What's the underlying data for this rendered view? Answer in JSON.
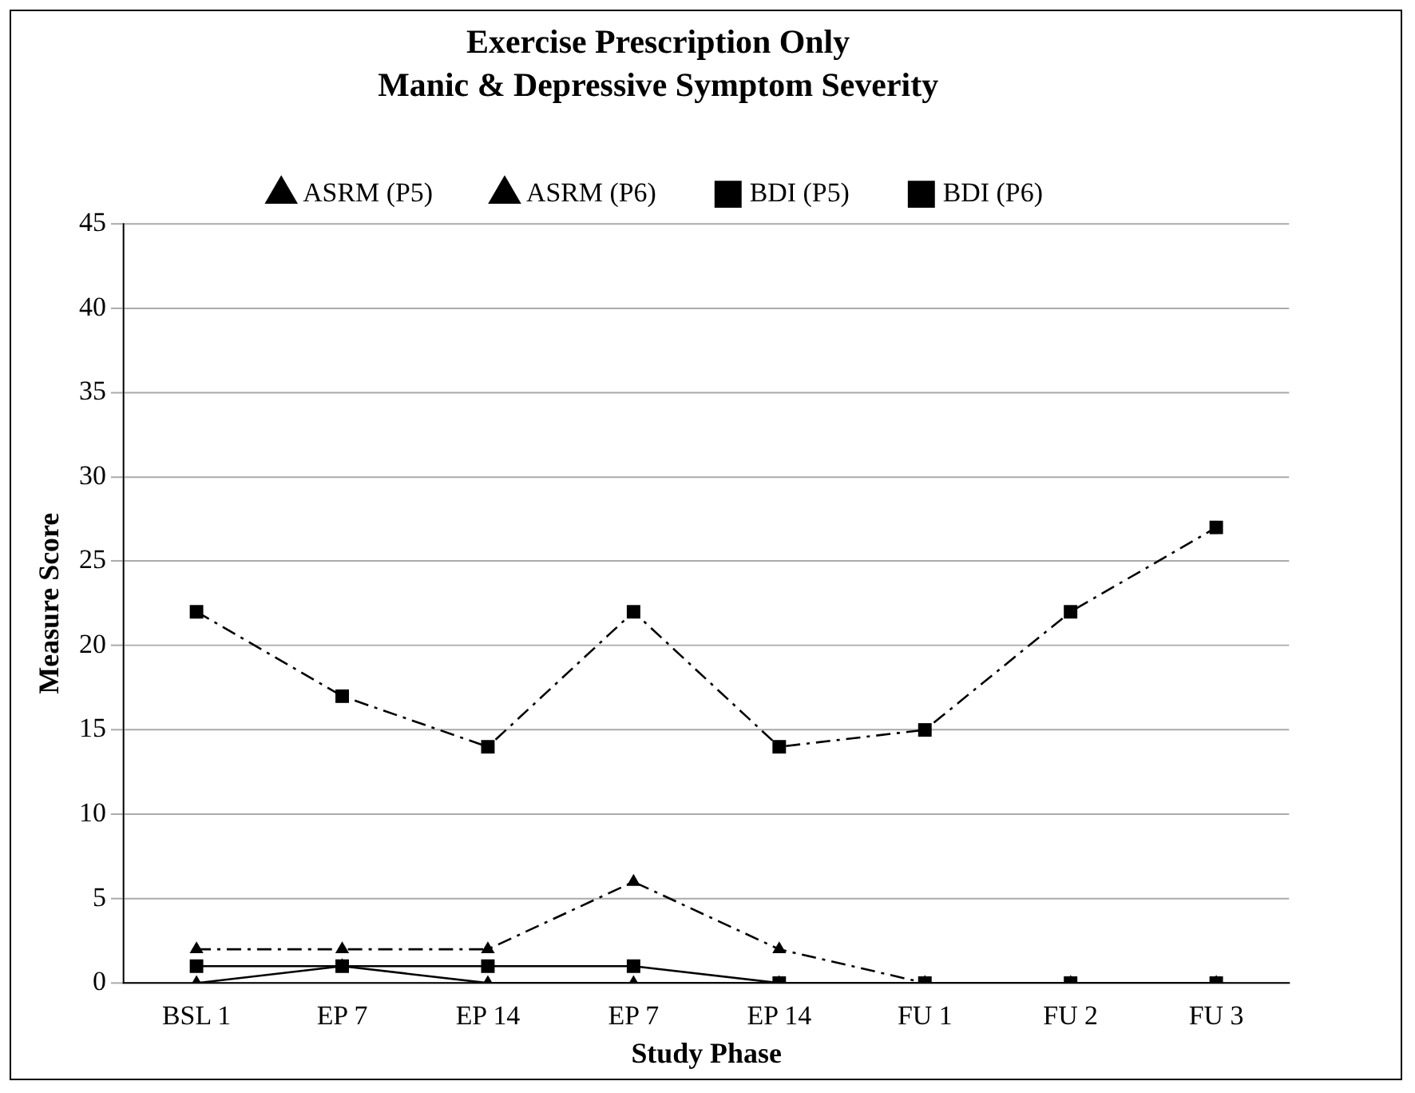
{
  "chart_data": {
    "type": "line",
    "title": "Exercise Prescription Only",
    "subtitle": "Manic & Depressive Symptom Severity",
    "xlabel": "Study Phase",
    "ylabel": "Measure Score",
    "categories": [
      "BSL 1",
      "EP 7",
      "EP 14",
      "EP 7",
      "EP 14",
      "FU 1",
      "FU 2",
      "FU 3"
    ],
    "series": [
      {
        "name": "ASRM (P5)",
        "color": "#000000",
        "marker": "triangle",
        "line_style": "solid",
        "values": [
          0,
          1,
          0,
          0,
          0,
          0,
          0,
          0
        ]
      },
      {
        "name": "BDI (P5)",
        "color": "#000000",
        "marker": "square",
        "line_style": "solid",
        "values": [
          1,
          1,
          1,
          1,
          0,
          0,
          0,
          0
        ]
      },
      {
        "name": "ASRM (P6)",
        "color": "#000000",
        "marker": "triangle",
        "line_style": "dashed",
        "values": [
          2,
          2,
          2,
          6,
          2,
          0,
          0,
          0
        ]
      },
      {
        "name": "BDI (P6)",
        "color": "#000000",
        "marker": "square",
        "line_style": "dashed",
        "values": [
          22,
          17,
          14,
          22,
          14,
          15,
          22,
          27
        ]
      }
    ],
    "ylim": [
      0,
      45
    ],
    "yticks": [
      0,
      5,
      10,
      15,
      20,
      25,
      30,
      35,
      40,
      45
    ],
    "grid": "y",
    "legend": "top"
  }
}
